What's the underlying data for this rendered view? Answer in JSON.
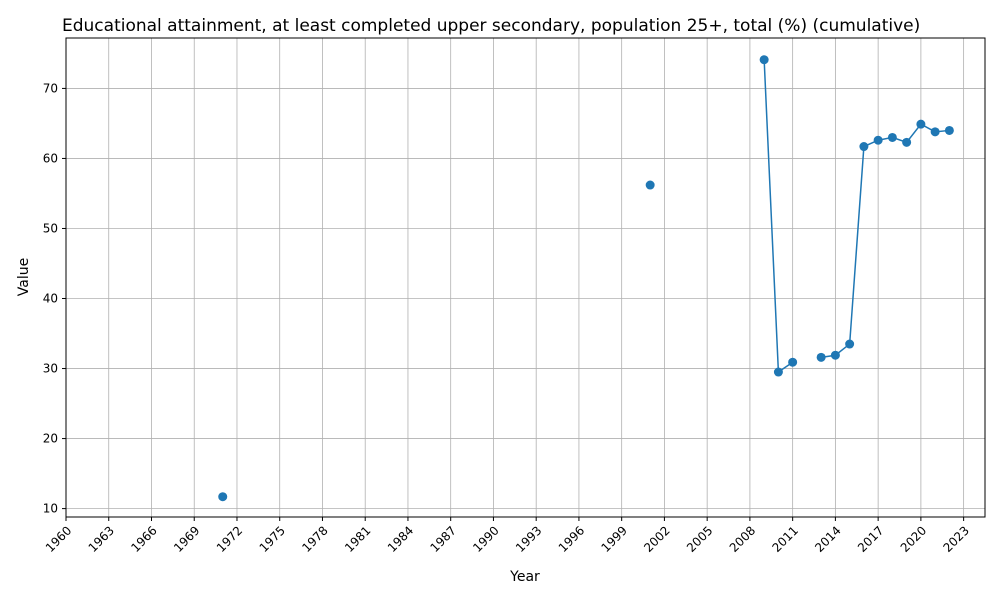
{
  "chart_data": {
    "type": "line",
    "title": "Educational attainment, at least completed upper secondary, population 25+, total (%) (cumulative)",
    "xlabel": "Year",
    "ylabel": "Value",
    "xlim": [
      1960,
      2024.5
    ],
    "ylim": [
      8.8,
      77.2
    ],
    "x_ticks": [
      "1960",
      "1963",
      "1966",
      "1969",
      "1972",
      "1975",
      "1978",
      "1981",
      "1984",
      "1987",
      "1990",
      "1993",
      "1996",
      "1999",
      "2002",
      "2005",
      "2008",
      "2011",
      "2014",
      "2017",
      "2020",
      "2023"
    ],
    "y_ticks": [
      "10",
      "20",
      "30",
      "40",
      "50",
      "60",
      "70"
    ],
    "grid": true,
    "color": "#1f77b4",
    "series": [
      {
        "x": [
          1971,
          2001,
          2009,
          2010,
          2011,
          2013,
          2014,
          2015,
          2016,
          2017,
          2018,
          2019,
          2020,
          2021,
          2022
        ],
        "values": [
          11.7,
          56.2,
          74.1,
          29.5,
          30.9,
          31.6,
          31.9,
          33.5,
          61.7,
          62.6,
          63.0,
          62.3,
          64.9,
          63.8,
          64.0
        ]
      }
    ]
  }
}
